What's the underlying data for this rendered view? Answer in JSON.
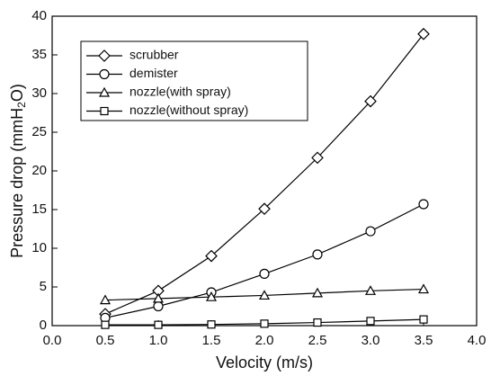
{
  "chart_data": {
    "type": "line",
    "x_label": "Velocity (m/s)",
    "y_label": [
      "Pressure drop (mmH",
      "2",
      "O)"
    ],
    "x": [
      0.5,
      1.0,
      1.5,
      2.0,
      2.5,
      3.0,
      3.5
    ],
    "series": [
      {
        "name": "scrubber",
        "color": "#000000",
        "marker": "diamond",
        "values": [
          1.5,
          4.5,
          9.0,
          15.1,
          21.7,
          29.0,
          37.7
        ]
      },
      {
        "name": "demister",
        "color": "#000000",
        "marker": "circle",
        "values": [
          1.0,
          2.5,
          4.3,
          6.7,
          9.2,
          12.2,
          15.7
        ]
      },
      {
        "name": "nozzle(with spray)",
        "color": "#000000",
        "marker": "triangle",
        "values": [
          3.3,
          3.5,
          3.7,
          3.9,
          4.2,
          4.5,
          4.7
        ]
      },
      {
        "name": "nozzle(without spray)",
        "color": "#000000",
        "marker": "square",
        "values": [
          0.1,
          0.1,
          0.15,
          0.25,
          0.4,
          0.6,
          0.8
        ]
      }
    ],
    "xlim": [
      0,
      4
    ],
    "xticks": [
      {
        "value": 0,
        "label": "0.0"
      },
      {
        "value": 0.5,
        "label": "0.5"
      },
      {
        "value": 1,
        "label": "1.0"
      },
      {
        "value": 1.5,
        "label": "1.5"
      },
      {
        "value": 2,
        "label": "2.0"
      },
      {
        "value": 2.5,
        "label": "2.5"
      },
      {
        "value": 3,
        "label": "3.0"
      },
      {
        "value": 3.5,
        "label": "3.5"
      },
      {
        "value": 4,
        "label": "4.0"
      }
    ],
    "ylim": [
      0,
      40
    ],
    "yticks": [
      0,
      5,
      10,
      15,
      20,
      25,
      30,
      35,
      40
    ],
    "legend": "upper left",
    "grid": false
  }
}
